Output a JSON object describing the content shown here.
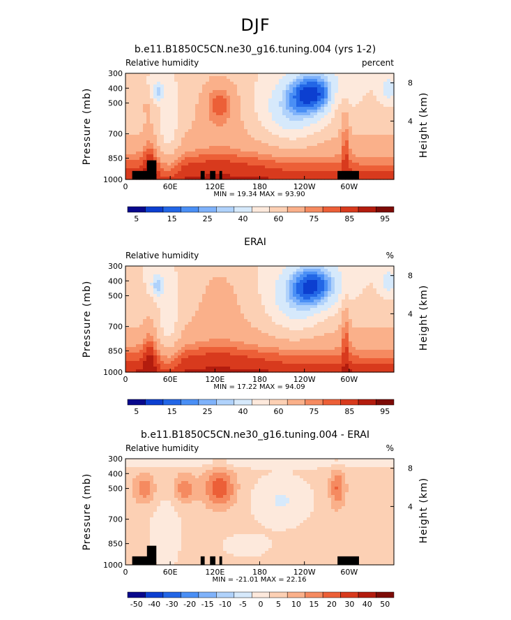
{
  "figure": {
    "title": "DJF",
    "height_label": "Height (km)",
    "height_ticks": [
      "8",
      "4"
    ]
  },
  "palettes": {
    "abs": [
      "#08088c",
      "#0c3fd0",
      "#2266e6",
      "#4a8ff5",
      "#7fb2fa",
      "#b0d2fb",
      "#d6e9fb",
      "#fde9dc",
      "#fcd0b4",
      "#fab08a",
      "#f58a60",
      "#ec5f37",
      "#d83a1d",
      "#b31c0e",
      "#7d0b06"
    ],
    "diff": [
      "#08088c",
      "#0c3fd0",
      "#2266e6",
      "#4a8ff5",
      "#7fb2fa",
      "#b0d2fb",
      "#d6e9fb",
      "#fde9dc",
      "#fcd0b4",
      "#fab08a",
      "#f58a60",
      "#ec5f37",
      "#d83a1d",
      "#b31c0e",
      "#7d0b06"
    ]
  },
  "chart_data": [
    {
      "type": "heatmap",
      "title": "b.e11.B1850C5CN.ne30_g16.tuning.004 (yrs 1-2)",
      "left_label": "Relative humidity",
      "right_label": "percent",
      "ylabel": "Pressure (mb)",
      "yticks": [
        "300",
        "400",
        "500",
        "700",
        "850",
        "1000"
      ],
      "xticks": [
        "0",
        "60E",
        "120E",
        "180",
        "120W",
        "60W"
      ],
      "stats": "MIN =   19.34   MAX =   93.90",
      "colorbar_labels": [
        "5",
        "15",
        "25",
        "40",
        "60",
        "75",
        "85",
        "95"
      ],
      "palette": "abs",
      "field": "model",
      "terrain": true
    },
    {
      "type": "heatmap",
      "title": "ERAI",
      "left_label": "Relative humidity",
      "right_label": "%",
      "ylabel": "Pressure (mb)",
      "yticks": [
        "300",
        "400",
        "500",
        "700",
        "850",
        "1000"
      ],
      "xticks": [
        "0",
        "60E",
        "120E",
        "180",
        "120W",
        "60W"
      ],
      "stats": "MIN =   17.22   MAX =   94.09",
      "colorbar_labels": [
        "5",
        "15",
        "25",
        "40",
        "60",
        "75",
        "85",
        "95"
      ],
      "palette": "abs",
      "field": "erai",
      "terrain": false
    },
    {
      "type": "heatmap",
      "title": "b.e11.B1850C5CN.ne30_g16.tuning.004 - ERAI",
      "left_label": "Relative humidity",
      "right_label": "%",
      "ylabel": "Pressure (mb)",
      "yticks": [
        "300",
        "400",
        "500",
        "700",
        "850",
        "1000"
      ],
      "xticks": [
        "0",
        "60E",
        "120E",
        "180",
        "120W",
        "60W"
      ],
      "stats": "MIN = -21.01   MAX =   22.16",
      "colorbar_labels": [
        "-50",
        "-40",
        "-30",
        "-20",
        "-15",
        "-10",
        "-5",
        "0",
        "5",
        "10",
        "15",
        "20",
        "30",
        "40",
        "50"
      ],
      "palette": "diff",
      "field": "diff",
      "terrain": true
    }
  ]
}
